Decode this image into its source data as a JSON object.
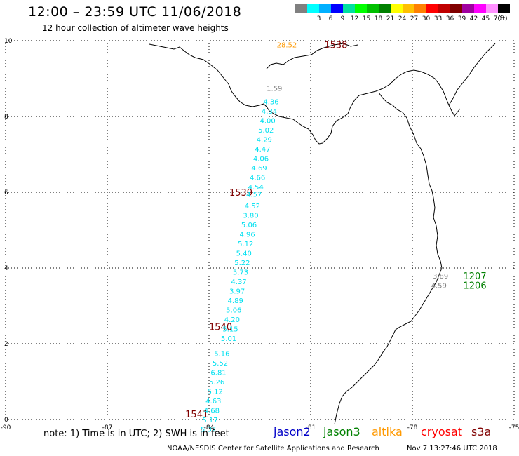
{
  "title": "12:00 – 23:59 UTC 11/06/2018",
  "subtitle": "12 hour collection of altimeter wave heights",
  "legend": {
    "unit": "(ft)",
    "swatches": [
      {
        "label": "",
        "color": "#808080"
      },
      {
        "label": "3",
        "color": "#00ffff"
      },
      {
        "label": "6",
        "color": "#00b0ff"
      },
      {
        "label": "9",
        "color": "#0000ff"
      },
      {
        "label": "12",
        "color": "#00e0a0"
      },
      {
        "label": "15",
        "color": "#00ff00"
      },
      {
        "label": "18",
        "color": "#00c000"
      },
      {
        "label": "21",
        "color": "#008000"
      },
      {
        "label": "24",
        "color": "#ffff00"
      },
      {
        "label": "27",
        "color": "#ffc000"
      },
      {
        "label": "30",
        "color": "#ff8000"
      },
      {
        "label": "33",
        "color": "#ff0000"
      },
      {
        "label": "36",
        "color": "#c00000"
      },
      {
        "label": "39",
        "color": "#800000"
      },
      {
        "label": "42",
        "color": "#a000a0"
      },
      {
        "label": "45",
        "color": "#ff00ff"
      },
      {
        "label": "70",
        "color": "#ff90ff"
      },
      {
        "label": "",
        "color": "#000000"
      }
    ]
  },
  "axes": {
    "x_ticks": [
      "-90",
      "-87",
      "-84",
      "-81",
      "-78",
      "-75"
    ],
    "y_ticks": [
      "0",
      "2",
      "4",
      "6",
      "8",
      "10"
    ],
    "xlim": [
      -90,
      -75
    ],
    "ylim": [
      0,
      10
    ]
  },
  "colors": {
    "wave": "#00e0f0",
    "track": "#800000",
    "jason3_track": "#008000",
    "gray": "#808080",
    "altika": "#ff9900"
  },
  "track_labels": [
    {
      "text": "1538",
      "lon": -80.6,
      "lat": 9.9,
      "color": "#800000"
    },
    {
      "text": "1539",
      "lon": -83.4,
      "lat": 6.0,
      "color": "#800000"
    },
    {
      "text": "1540",
      "lon": -84.0,
      "lat": 2.45,
      "color": "#800000"
    },
    {
      "text": "1541",
      "lon": -84.7,
      "lat": 0.15,
      "color": "#800000"
    },
    {
      "text": "1207",
      "lon": -76.5,
      "lat": 3.8,
      "color": "#008000"
    },
    {
      "text": "1206",
      "lon": -76.5,
      "lat": 3.55,
      "color": "#008000"
    }
  ],
  "observations": [
    {
      "text": "28.52",
      "lon": -82.0,
      "lat": 9.9,
      "color": "#ff9900"
    },
    {
      "text": "1.59",
      "lon": -82.3,
      "lat": 8.75,
      "color": "#808080"
    },
    {
      "text": "4.36",
      "lon": -82.4,
      "lat": 8.4,
      "color": "#00e0f0"
    },
    {
      "text": "4.34",
      "lon": -82.45,
      "lat": 8.15,
      "color": "#00e0f0"
    },
    {
      "text": "4.00",
      "lon": -82.5,
      "lat": 7.9,
      "color": "#00e0f0"
    },
    {
      "text": "5.02",
      "lon": -82.55,
      "lat": 7.65,
      "color": "#00e0f0"
    },
    {
      "text": "4.29",
      "lon": -82.6,
      "lat": 7.4,
      "color": "#00e0f0"
    },
    {
      "text": "4.47",
      "lon": -82.65,
      "lat": 7.15,
      "color": "#00e0f0"
    },
    {
      "text": "4.06",
      "lon": -82.7,
      "lat": 6.9,
      "color": "#00e0f0"
    },
    {
      "text": "4.69",
      "lon": -82.75,
      "lat": 6.65,
      "color": "#00e0f0"
    },
    {
      "text": "4.66",
      "lon": -82.8,
      "lat": 6.4,
      "color": "#00e0f0"
    },
    {
      "text": "4.54",
      "lon": -82.85,
      "lat": 6.15,
      "color": "#00e0f0"
    },
    {
      "text": "4.57",
      "lon": -82.9,
      "lat": 5.95,
      "color": "#00e0f0"
    },
    {
      "text": "4.52",
      "lon": -82.95,
      "lat": 5.65,
      "color": "#00e0f0"
    },
    {
      "text": "3.80",
      "lon": -83.0,
      "lat": 5.4,
      "color": "#00e0f0"
    },
    {
      "text": "5.06",
      "lon": -83.05,
      "lat": 5.15,
      "color": "#00e0f0"
    },
    {
      "text": "4.96",
      "lon": -83.1,
      "lat": 4.9,
      "color": "#00e0f0"
    },
    {
      "text": "5.12",
      "lon": -83.15,
      "lat": 4.65,
      "color": "#00e0f0"
    },
    {
      "text": "5.40",
      "lon": -83.2,
      "lat": 4.4,
      "color": "#00e0f0"
    },
    {
      "text": "5.22",
      "lon": -83.25,
      "lat": 4.15,
      "color": "#00e0f0"
    },
    {
      "text": "5.73",
      "lon": -83.3,
      "lat": 3.9,
      "color": "#00e0f0"
    },
    {
      "text": "4.37",
      "lon": -83.35,
      "lat": 3.65,
      "color": "#00e0f0"
    },
    {
      "text": "3.97",
      "lon": -83.4,
      "lat": 3.4,
      "color": "#00e0f0"
    },
    {
      "text": "4.89",
      "lon": -83.45,
      "lat": 3.15,
      "color": "#00e0f0"
    },
    {
      "text": "5.06",
      "lon": -83.5,
      "lat": 2.9,
      "color": "#00e0f0"
    },
    {
      "text": "4.20",
      "lon": -83.55,
      "lat": 2.65,
      "color": "#00e0f0"
    },
    {
      "text": "5.15",
      "lon": -83.6,
      "lat": 2.4,
      "color": "#00e0f0"
    },
    {
      "text": "5.01",
      "lon": -83.65,
      "lat": 2.15,
      "color": "#00e0f0"
    },
    {
      "text": "5.16",
      "lon": -83.85,
      "lat": 1.75,
      "color": "#00e0f0"
    },
    {
      "text": "5.52",
      "lon": -83.9,
      "lat": 1.5,
      "color": "#00e0f0"
    },
    {
      "text": "6.81",
      "lon": -83.95,
      "lat": 1.25,
      "color": "#00e0f0"
    },
    {
      "text": "5.26",
      "lon": -84.0,
      "lat": 1.0,
      "color": "#00e0f0"
    },
    {
      "text": "5.12",
      "lon": -84.05,
      "lat": 0.75,
      "color": "#00e0f0"
    },
    {
      "text": "4.63",
      "lon": -84.1,
      "lat": 0.5,
      "color": "#00e0f0"
    },
    {
      "text": "4.68",
      "lon": -84.15,
      "lat": 0.25,
      "color": "#00e0f0"
    },
    {
      "text": "5.17",
      "lon": -84.2,
      "lat": 0.0,
      "color": "#00e0f0"
    },
    {
      "text": "5.37",
      "lon": -84.25,
      "lat": -0.25,
      "color": "#00e0f0"
    },
    {
      "text": "3.89",
      "lon": -77.4,
      "lat": 3.8,
      "color": "#808080"
    },
    {
      "text": "4.59",
      "lon": -77.45,
      "lat": 3.55,
      "color": "#808080"
    }
  ],
  "satellites": [
    {
      "name": "jason2",
      "color": "#0000c8"
    },
    {
      "name": "jason3",
      "color": "#008000"
    },
    {
      "name": "altika",
      "color": "#ff9900"
    },
    {
      "name": "cryosat",
      "color": "#ff0000"
    },
    {
      "name": "s3a",
      "color": "#800000"
    }
  ],
  "note": "note:  1) Time is in UTC;  2) SWH is in feet",
  "footer": "NOAA/NESDIS Center for Satellite Applications and Research",
  "footer_time": "Nov  7 13:27:46 UTC 2018"
}
